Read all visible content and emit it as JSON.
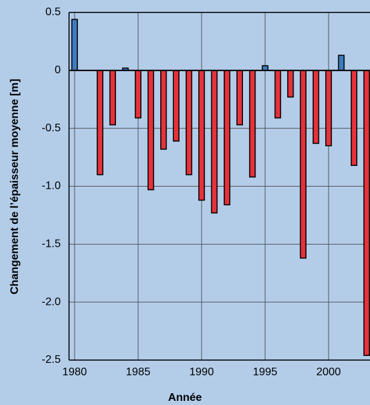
{
  "chart_data": {
    "type": "bar",
    "x_label": "Année",
    "y_label": "Changement de l’épaisseur moyenne [m]",
    "x": [
      1980,
      1982,
      1983,
      1984,
      1985,
      1986,
      1987,
      1988,
      1989,
      1990,
      1991,
      1992,
      1993,
      1994,
      1995,
      1996,
      1997,
      1998,
      1999,
      2000,
      2001,
      2002,
      2003
    ],
    "values": [
      0.44,
      -0.9,
      -0.47,
      0.02,
      -0.41,
      -1.03,
      -0.68,
      -0.61,
      -0.9,
      -1.12,
      -1.23,
      -1.16,
      -0.47,
      -0.92,
      0.04,
      -0.41,
      -0.23,
      -1.62,
      -0.63,
      -0.65,
      0.13,
      -0.82,
      -2.46
    ],
    "positive_color": "#3d7cc0",
    "negative_color": "#e5323b",
    "xlim": [
      1979.56,
      2003.26
    ],
    "xticks": [
      1980,
      1985,
      1990,
      1995,
      2000
    ],
    "ylim": [
      -2.5,
      0.5
    ],
    "yticks": [
      0.5,
      0,
      -0.5,
      {
        "value": -1,
        "label": "-1.0"
      },
      -1.5,
      {
        "value": -2,
        "label": "-2.0"
      },
      -2.5
    ],
    "grid": true
  }
}
